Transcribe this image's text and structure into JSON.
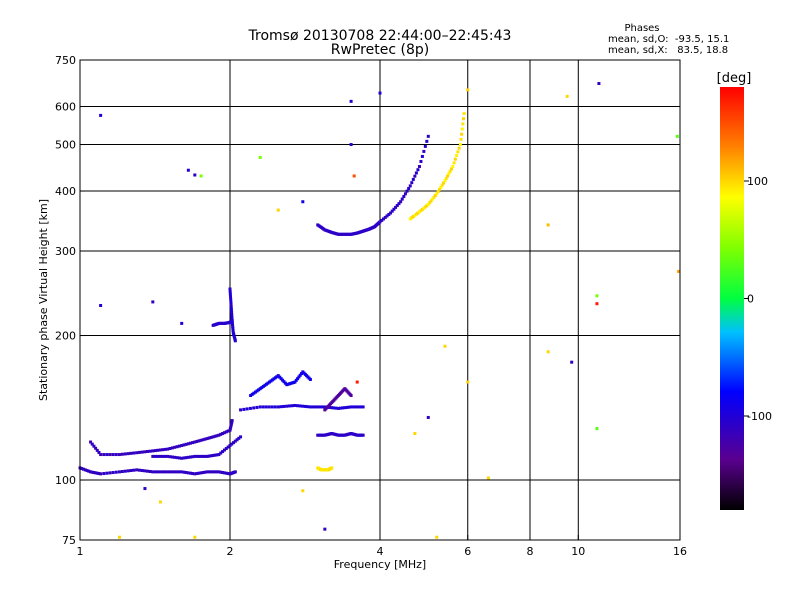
{
  "header": {
    "title_line1": "Tromsø 20130708 22:44:00–22:45:43",
    "title_line2": "RwPretec (8p)",
    "phases_label": "Phases",
    "phases_o": "mean, sd,O:  -93.5, 15.1",
    "phases_x": "mean, sd,X:   83.5, 18.8"
  },
  "colorbar": {
    "label": "[deg]",
    "range": [
      -180,
      180
    ],
    "ticks": [
      {
        "value": 100,
        "label": "100"
      },
      {
        "value": 0,
        "label": "0"
      },
      {
        "value": -100,
        "label": "-100"
      }
    ]
  },
  "chart_data": {
    "type": "scatter",
    "title": "Tromsø 20130708 22:44:00–22:45:43",
    "subtitle": "RwPretec (8p)",
    "xlabel": "Frequency [MHz]",
    "ylabel": "Stationary phase Virtual Height [km]",
    "xscale": "log",
    "yscale": "log",
    "xlim": [
      1,
      16
    ],
    "ylim": [
      75,
      750
    ],
    "xticks": [
      {
        "value": 1,
        "label": "1"
      },
      {
        "value": 2,
        "label": "2"
      },
      {
        "value": 4,
        "label": "4"
      },
      {
        "value": 6,
        "label": "6"
      },
      {
        "value": 8,
        "label": "8"
      },
      {
        "value": 10,
        "label": "10"
      },
      {
        "value": 16,
        "label": "16"
      }
    ],
    "yticks": [
      {
        "value": 75,
        "label": "75"
      },
      {
        "value": 100,
        "label": "100"
      },
      {
        "value": 200,
        "label": "200"
      },
      {
        "value": 300,
        "label": "300"
      },
      {
        "value": 400,
        "label": "400"
      },
      {
        "value": 500,
        "label": "500"
      },
      {
        "value": 600,
        "label": "600"
      },
      {
        "value": 750,
        "label": "750"
      }
    ],
    "grid_x": [
      1,
      2,
      4,
      6,
      8,
      10,
      16
    ],
    "grid_y": [
      100,
      200,
      300,
      400,
      500,
      600
    ],
    "color_encodes": "phase [deg]",
    "series": [
      {
        "traces": [
          {
            "f": [
              1.0,
              1.05,
              1.1,
              1.2,
              1.3,
              1.4,
              1.5,
              1.6,
              1.7,
              1.8,
              1.9,
              2.0,
              2.05
            ],
            "h": [
              106,
              104,
              103,
              104,
              105,
              104,
              104,
              104,
              103,
              104,
              104,
              103,
              104
            ],
            "phase": -110
          },
          {
            "f": [
              1.05,
              1.1,
              1.2,
              1.3,
              1.4,
              1.5,
              1.6,
              1.7,
              1.8,
              1.9,
              2.0,
              2.02
            ],
            "h": [
              120,
              113,
              113,
              114,
              115,
              116,
              118,
              120,
              122,
              124,
              127,
              133
            ],
            "phase": -112
          },
          {
            "f": [
              1.4,
              1.5,
              1.6,
              1.7,
              1.8,
              1.9,
              2.0,
              2.1
            ],
            "h": [
              112,
              112,
              111,
              112,
              112,
              113,
              118,
              123
            ],
            "phase": -108
          },
          {
            "f": [
              1.85,
              1.9,
              1.95,
              2.0,
              2.02
            ],
            "h": [
              210,
              212,
              212,
              213,
              215
            ],
            "phase": -105
          },
          {
            "f": [
              2.0,
              2.01,
              2.02,
              2.03,
              2.05
            ],
            "h": [
              250,
              232,
              215,
              203,
              195
            ],
            "phase": -100
          },
          {
            "f": [
              2.1,
              2.3,
              2.5,
              2.7,
              2.9,
              3.1,
              3.3,
              3.5,
              3.7
            ],
            "h": [
              140,
              142,
              142,
              143,
              142,
              142,
              141,
              142,
              142
            ],
            "phase": -100
          },
          {
            "f": [
              3.0,
              3.1,
              3.2,
              3.3,
              3.4,
              3.5,
              3.6,
              3.7
            ],
            "h": [
              124,
              124,
              125,
              124,
              124,
              125,
              124,
              124
            ],
            "phase": -108
          },
          {
            "f": [
              3.0,
              3.05,
              3.1,
              3.15,
              3.2
            ],
            "h": [
              106,
              105,
              105,
              105,
              106
            ],
            "phase": 95
          },
          {
            "f": [
              3.0,
              3.1,
              3.2,
              3.3,
              3.4,
              3.5,
              3.6,
              3.7,
              3.8,
              3.9,
              4.0,
              4.2,
              4.4,
              4.6,
              4.8,
              5.0
            ],
            "h": [
              340,
              332,
              328,
              325,
              325,
              325,
              327,
              330,
              333,
              337,
              345,
              360,
              380,
              410,
              450,
              520
            ],
            "phase": -108
          },
          {
            "f": [
              4.6,
              4.8,
              5.0,
              5.2,
              5.4,
              5.6,
              5.8,
              5.9
            ],
            "h": [
              350,
              362,
              375,
              395,
              420,
              450,
              500,
              580
            ],
            "phase": 95
          },
          {
            "f": [
              2.2,
              2.3,
              2.4,
              2.5,
              2.6,
              2.7,
              2.8,
              2.9
            ],
            "h": [
              150,
              155,
              160,
              165,
              158,
              160,
              168,
              162
            ],
            "phase": -90
          },
          {
            "f": [
              3.1,
              3.2,
              3.3,
              3.4,
              3.5
            ],
            "h": [
              140,
              145,
              150,
              155,
              150
            ],
            "phase": -130
          }
        ]
      }
    ],
    "scatter_points": [
      {
        "f": 1.1,
        "h": 575,
        "phase": -100
      },
      {
        "f": 1.65,
        "h": 442,
        "phase": -100
      },
      {
        "f": 1.7,
        "h": 432,
        "phase": -105
      },
      {
        "f": 1.75,
        "h": 430,
        "phase": 40
      },
      {
        "f": 2.3,
        "h": 470,
        "phase": 40
      },
      {
        "f": 2.5,
        "h": 365,
        "phase": 100
      },
      {
        "f": 2.8,
        "h": 380,
        "phase": -90
      },
      {
        "f": 3.5,
        "h": 615,
        "phase": -100
      },
      {
        "f": 3.5,
        "h": 500,
        "phase": -105
      },
      {
        "f": 3.55,
        "h": 430,
        "phase": 150
      },
      {
        "f": 4.0,
        "h": 640,
        "phase": -100
      },
      {
        "f": 6.0,
        "h": 650,
        "phase": 100
      },
      {
        "f": 9.5,
        "h": 630,
        "phase": 100
      },
      {
        "f": 11.0,
        "h": 670,
        "phase": -110
      },
      {
        "f": 15.8,
        "h": 520,
        "phase": 30
      },
      {
        "f": 8.7,
        "h": 340,
        "phase": 110
      },
      {
        "f": 10.9,
        "h": 242,
        "phase": 40
      },
      {
        "f": 10.9,
        "h": 233,
        "phase": 170
      },
      {
        "f": 15.9,
        "h": 272,
        "phase": 120
      },
      {
        "f": 1.1,
        "h": 231,
        "phase": -100
      },
      {
        "f": 1.4,
        "h": 235,
        "phase": -110
      },
      {
        "f": 1.6,
        "h": 212,
        "phase": -100
      },
      {
        "f": 3.6,
        "h": 160,
        "phase": 170
      },
      {
        "f": 5.4,
        "h": 190,
        "phase": 100
      },
      {
        "f": 6.0,
        "h": 160,
        "phase": 100
      },
      {
        "f": 8.7,
        "h": 185,
        "phase": 100
      },
      {
        "f": 9.7,
        "h": 176,
        "phase": -110
      },
      {
        "f": 10.9,
        "h": 128,
        "phase": 30
      },
      {
        "f": 2.8,
        "h": 95,
        "phase": 100
      },
      {
        "f": 3.1,
        "h": 79,
        "phase": -110
      },
      {
        "f": 1.35,
        "h": 96,
        "phase": -110
      },
      {
        "f": 1.45,
        "h": 90,
        "phase": 100
      },
      {
        "f": 1.2,
        "h": 76,
        "phase": 100
      },
      {
        "f": 1.7,
        "h": 76,
        "phase": 100
      },
      {
        "f": 5.2,
        "h": 76,
        "phase": 100
      },
      {
        "f": 6.6,
        "h": 101,
        "phase": 100
      },
      {
        "f": 5.0,
        "h": 135,
        "phase": -110
      },
      {
        "f": 4.7,
        "h": 125,
        "phase": 100
      }
    ]
  }
}
